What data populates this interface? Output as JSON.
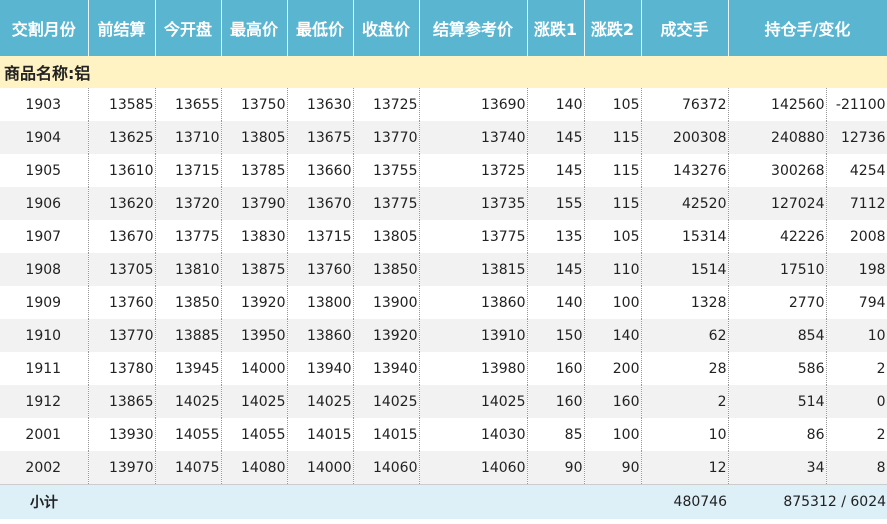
{
  "table": {
    "headers": [
      "交割月份",
      "前结算",
      "今开盘",
      "最高价",
      "最低价",
      "收盘价",
      "结算参考价",
      "涨跌1",
      "涨跌2",
      "成交手",
      "持仓手/变化"
    ],
    "group": "商品名称:铝",
    "rows": [
      [
        "1903",
        13585,
        13655,
        13750,
        13630,
        13725,
        13690,
        140,
        105,
        76372,
        142560,
        -21100
      ],
      [
        "1904",
        13625,
        13710,
        13805,
        13675,
        13770,
        13740,
        145,
        115,
        200308,
        240880,
        12736
      ],
      [
        "1905",
        13610,
        13715,
        13785,
        13660,
        13755,
        13725,
        145,
        115,
        143276,
        300268,
        4254
      ],
      [
        "1906",
        13620,
        13720,
        13790,
        13670,
        13775,
        13735,
        155,
        115,
        42520,
        127024,
        7112
      ],
      [
        "1907",
        13670,
        13775,
        13830,
        13715,
        13805,
        13775,
        135,
        105,
        15314,
        42226,
        2008
      ],
      [
        "1908",
        13705,
        13810,
        13875,
        13760,
        13850,
        13815,
        145,
        110,
        1514,
        17510,
        198
      ],
      [
        "1909",
        13760,
        13850,
        13920,
        13800,
        13900,
        13860,
        140,
        100,
        1328,
        2770,
        794
      ],
      [
        "1910",
        13770,
        13885,
        13950,
        13860,
        13920,
        13910,
        150,
        140,
        62,
        854,
        10
      ],
      [
        "1911",
        13780,
        13945,
        14000,
        13940,
        13940,
        13980,
        160,
        200,
        28,
        586,
        2
      ],
      [
        "1912",
        13865,
        14025,
        14025,
        14025,
        14025,
        14025,
        160,
        160,
        2,
        514,
        0
      ],
      [
        "2001",
        13930,
        14055,
        14055,
        14015,
        14015,
        14030,
        85,
        100,
        10,
        86,
        2
      ],
      [
        "2002",
        13970,
        14075,
        14080,
        14000,
        14060,
        14060,
        90,
        90,
        12,
        34,
        8
      ]
    ],
    "subtotal": {
      "label": "小计",
      "volume": 480746,
      "position": "875312 / 6024"
    }
  }
}
